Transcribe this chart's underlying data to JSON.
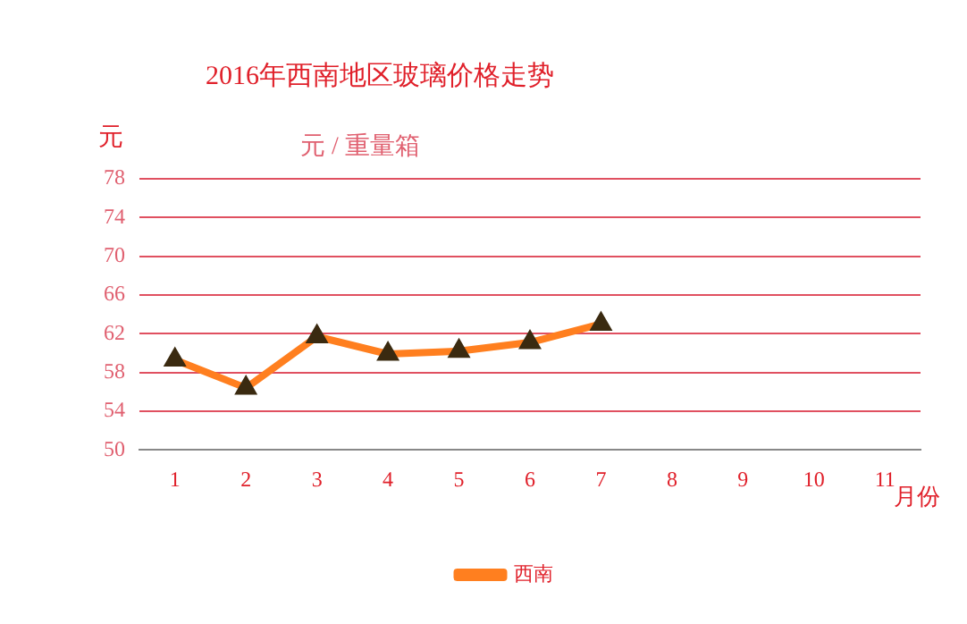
{
  "chart_data": {
    "type": "line",
    "title": "2016年西南地区玻璃价格走势",
    "subtitle": "元 / 重量箱",
    "ylabel": "元",
    "xlabel": "月份",
    "categories": [
      "1",
      "2",
      "3",
      "4",
      "5",
      "6",
      "7",
      "8",
      "9",
      "10",
      "11"
    ],
    "series": [
      {
        "name": "西南",
        "color": "#ff7f1f",
        "values": [
          59.3,
          56.4,
          61.7,
          59.9,
          60.2,
          61.1,
          63.0,
          null,
          null,
          null,
          null
        ]
      }
    ],
    "ylim": [
      50,
      78
    ],
    "yticks": [
      50,
      54,
      58,
      62,
      66,
      70,
      74,
      78
    ],
    "grid": "y",
    "legend": "bottom",
    "marker": "triangle",
    "line_style": "solid"
  }
}
